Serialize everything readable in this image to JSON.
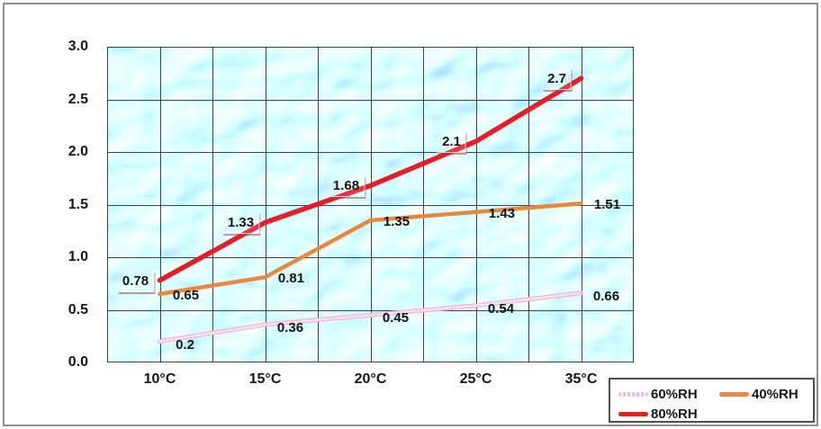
{
  "window": {
    "background_color": "#ffffff",
    "frame_border_color": "#8f8f8f"
  },
  "chart_data": {
    "type": "line",
    "title": "",
    "xlabel": "",
    "ylabel": "",
    "categories": [
      "10°C",
      "15°C",
      "20°C",
      "25°C",
      "35°C"
    ],
    "x_axis": {
      "type": "category",
      "tick_labels": [
        "10°C",
        "15°C",
        "20°C",
        "25°C",
        "35°C"
      ]
    },
    "y_axis": {
      "min": 0.0,
      "max": 3.0,
      "tick_step": 0.5,
      "tick_labels": [
        "3.0",
        "2.5",
        "2.0",
        "1.5",
        "1.0",
        "0.5",
        "0.0"
      ]
    },
    "grid": {
      "visible": true,
      "color": "#16243c",
      "note": "square grid, lines every 0.5 y-units and every half category"
    },
    "plot_background": "blue pool water photo",
    "series": [
      {
        "name": "60%RH",
        "color": "#f2bcd7",
        "style": "dotted-pattern",
        "width": 5,
        "values": [
          0.2,
          0.36,
          0.45,
          0.54,
          0.66
        ],
        "labels": [
          "0.2",
          "0.36",
          "0.45",
          "0.54",
          "0.66"
        ],
        "label_side": "right",
        "label_boxed": false
      },
      {
        "name": "40%RH",
        "color": "#e8873f",
        "style": "solid",
        "width": 4.5,
        "values": [
          0.65,
          0.81,
          1.35,
          1.43,
          1.51
        ],
        "labels": [
          "0.65",
          "0.81",
          "1.35",
          "1.43",
          "1.51"
        ],
        "label_side": "right",
        "label_boxed": false
      },
      {
        "name": "80%RH",
        "color": "#e81c26",
        "style": "solid",
        "width": 5.5,
        "values": [
          0.78,
          1.33,
          1.68,
          2.1,
          2.7
        ],
        "labels": [
          "0.78",
          "1.33",
          "1.68",
          "2.1",
          "2.7"
        ],
        "label_side": "left",
        "label_boxed": true
      }
    ],
    "legend": {
      "position": "bottom-right",
      "entries": [
        "60%RH",
        "40%RH",
        "80%RH"
      ]
    }
  }
}
